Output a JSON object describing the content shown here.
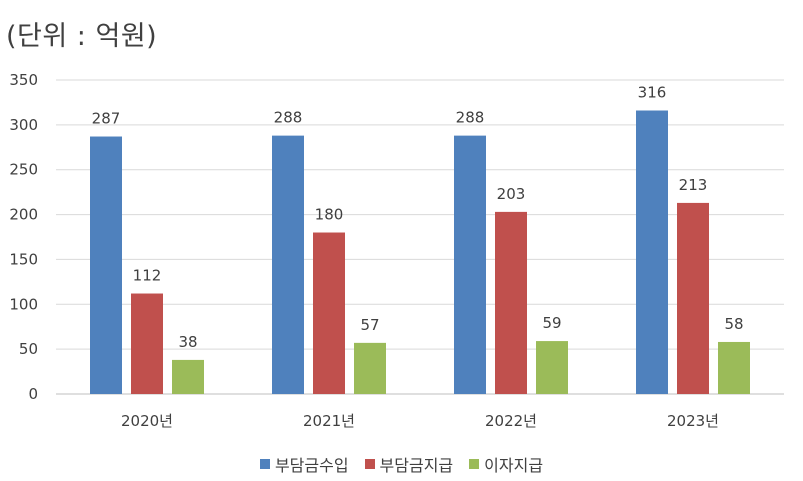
{
  "unit_label": "(단위 : 억원)",
  "colors": {
    "series1": "#4F81BD",
    "series2": "#C0504D",
    "series3": "#9BBB59"
  },
  "chart_data": {
    "type": "bar",
    "title": "",
    "xlabel": "",
    "ylabel": "",
    "unit": "(단위 : 억원)",
    "categories": [
      "2020년",
      "2021년",
      "2022년",
      "2023년"
    ],
    "series": [
      {
        "name": "부담금수입",
        "color": "#4F81BD",
        "values": [
          287,
          288,
          288,
          316
        ]
      },
      {
        "name": "부담금지급",
        "color": "#C0504D",
        "values": [
          112,
          180,
          203,
          213
        ]
      },
      {
        "name": "이자지급",
        "color": "#9BBB59",
        "values": [
          38,
          57,
          59,
          58
        ]
      }
    ],
    "ylim": [
      0,
      350
    ],
    "yticks": [
      0,
      50,
      100,
      150,
      200,
      250,
      300,
      350
    ],
    "grid": true,
    "legend_position": "bottom",
    "data_labels": true
  }
}
